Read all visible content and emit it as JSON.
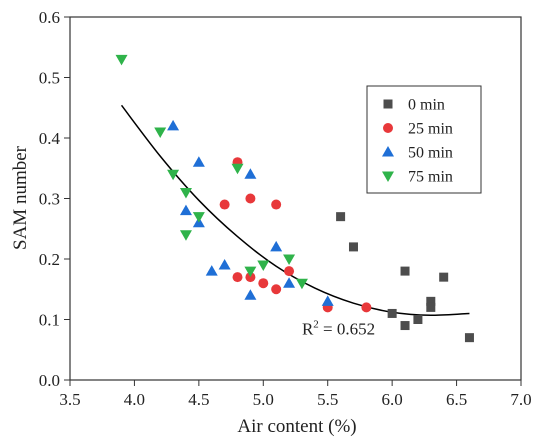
{
  "chart_data": {
    "type": "scatter",
    "xlabel": "Air content (%)",
    "ylabel": "SAM number",
    "xlim": [
      3.5,
      7.0
    ],
    "ylim": [
      0.0,
      0.6
    ],
    "xticks": [
      "3.5",
      "4.0",
      "4.5",
      "5.0",
      "5.5",
      "6.0",
      "6.5",
      "7.0"
    ],
    "yticks": [
      "0.0",
      "0.1",
      "0.2",
      "0.3",
      "0.4",
      "0.5",
      "0.6"
    ],
    "grid": false,
    "legend_position": "top-right",
    "series": [
      {
        "name": "0 min",
        "marker": "square",
        "color": "#4d4d4d",
        "points": [
          [
            5.6,
            0.27
          ],
          [
            5.7,
            0.22
          ],
          [
            6.0,
            0.11
          ],
          [
            6.1,
            0.18
          ],
          [
            6.1,
            0.09
          ],
          [
            6.2,
            0.1
          ],
          [
            6.3,
            0.13
          ],
          [
            6.3,
            0.12
          ],
          [
            6.4,
            0.17
          ],
          [
            6.6,
            0.07
          ]
        ]
      },
      {
        "name": "25 min",
        "marker": "circle",
        "color": "#e8383a",
        "points": [
          [
            4.7,
            0.29
          ],
          [
            4.8,
            0.36
          ],
          [
            4.8,
            0.17
          ],
          [
            4.9,
            0.3
          ],
          [
            4.9,
            0.17
          ],
          [
            5.0,
            0.16
          ],
          [
            5.1,
            0.29
          ],
          [
            5.1,
            0.15
          ],
          [
            5.2,
            0.18
          ],
          [
            5.5,
            0.12
          ],
          [
            5.8,
            0.12
          ]
        ]
      },
      {
        "name": "50 min",
        "marker": "triangle-up",
        "color": "#1f6fd6",
        "points": [
          [
            4.3,
            0.42
          ],
          [
            4.4,
            0.28
          ],
          [
            4.5,
            0.36
          ],
          [
            4.5,
            0.26
          ],
          [
            4.6,
            0.18
          ],
          [
            4.7,
            0.19
          ],
          [
            4.9,
            0.34
          ],
          [
            4.9,
            0.14
          ],
          [
            5.1,
            0.22
          ],
          [
            5.2,
            0.16
          ],
          [
            5.5,
            0.13
          ]
        ]
      },
      {
        "name": "75 min",
        "marker": "triangle-down",
        "color": "#2fb34a",
        "points": [
          [
            3.9,
            0.53
          ],
          [
            4.2,
            0.41
          ],
          [
            4.3,
            0.34
          ],
          [
            4.4,
            0.31
          ],
          [
            4.4,
            0.24
          ],
          [
            4.5,
            0.27
          ],
          [
            4.8,
            0.35
          ],
          [
            4.9,
            0.18
          ],
          [
            5.0,
            0.19
          ],
          [
            5.2,
            0.2
          ],
          [
            5.3,
            0.16
          ]
        ]
      }
    ],
    "fit": {
      "type": "polynomial",
      "color": "#000000",
      "points": [
        [
          3.9,
          0.454
        ],
        [
          4.2,
          0.37
        ],
        [
          4.5,
          0.297
        ],
        [
          4.8,
          0.237
        ],
        [
          5.1,
          0.188
        ],
        [
          5.4,
          0.152
        ],
        [
          5.7,
          0.127
        ],
        [
          6.0,
          0.112
        ],
        [
          6.3,
          0.107
        ],
        [
          6.6,
          0.11
        ]
      ],
      "annotation": {
        "prefix": "R",
        "sup": "2",
        "suffix": " = 0.652",
        "x": 5.3,
        "y": 0.075
      }
    }
  }
}
